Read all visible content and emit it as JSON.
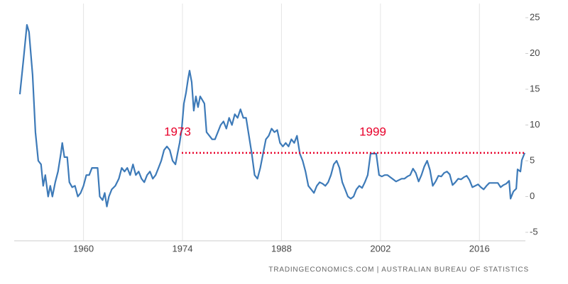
{
  "chart_data": {
    "type": "line",
    "source": "TRADINGECONOMICS.COM  |  AUSTRALIAN BUREAU OF STATISTICS",
    "annotations": [
      "1973",
      "1999"
    ],
    "annotation_color": "#e8002a",
    "reference_line": {
      "value": 6.1,
      "from": 1973.9,
      "to": 2022.4
    },
    "xlim": [
      1950.2,
      2022.5
    ],
    "xticks": [
      1960,
      1974,
      1988,
      2002,
      2016
    ],
    "ylim": [
      -5,
      25
    ],
    "yticks": [
      -5,
      0,
      5,
      10,
      15,
      20,
      25
    ],
    "grid": true,
    "x": [
      1951.0,
      1951.5,
      1952.0,
      1952.3,
      1952.8,
      1953.2,
      1953.6,
      1954.0,
      1954.3,
      1954.6,
      1955.0,
      1955.3,
      1955.6,
      1956.0,
      1956.4,
      1956.8,
      1957.0,
      1957.3,
      1957.7,
      1958.0,
      1958.4,
      1958.8,
      1959.2,
      1959.6,
      1960.0,
      1960.4,
      1960.8,
      1961.2,
      1961.6,
      1962.0,
      1962.3,
      1962.7,
      1963.0,
      1963.3,
      1963.6,
      1964.0,
      1964.5,
      1965.0,
      1965.4,
      1965.8,
      1966.2,
      1966.6,
      1967.0,
      1967.4,
      1967.8,
      1968.2,
      1968.6,
      1969.0,
      1969.4,
      1969.8,
      1970.2,
      1970.6,
      1971.0,
      1971.4,
      1971.8,
      1972.2,
      1972.6,
      1973.0,
      1973.3,
      1973.6,
      1973.9,
      1974.2,
      1974.5,
      1974.8,
      1975.0,
      1975.3,
      1975.6,
      1975.9,
      1976.2,
      1976.5,
      1976.8,
      1977.1,
      1977.4,
      1977.8,
      1978.2,
      1978.6,
      1979.0,
      1979.4,
      1979.8,
      1980.2,
      1980.6,
      1981.0,
      1981.4,
      1981.8,
      1982.2,
      1982.6,
      1983.0,
      1983.4,
      1983.8,
      1984.2,
      1984.6,
      1985.0,
      1985.4,
      1985.8,
      1986.2,
      1986.6,
      1987.0,
      1987.4,
      1987.8,
      1988.2,
      1988.6,
      1989.0,
      1989.4,
      1989.8,
      1990.2,
      1990.6,
      1991.0,
      1991.4,
      1991.8,
      1992.2,
      1992.6,
      1993.0,
      1993.4,
      1993.8,
      1994.2,
      1994.6,
      1995.0,
      1995.4,
      1995.8,
      1996.2,
      1996.6,
      1997.0,
      1997.4,
      1997.8,
      1998.2,
      1998.6,
      1999.0,
      1999.4,
      1999.8,
      2000.2,
      2000.6,
      2001.0,
      2001.4,
      2001.8,
      2002.2,
      2002.6,
      2003.0,
      2003.4,
      2003.8,
      2004.2,
      2004.6,
      2005.0,
      2005.4,
      2005.8,
      2006.2,
      2006.6,
      2007.0,
      2007.4,
      2007.8,
      2008.2,
      2008.6,
      2009.0,
      2009.4,
      2009.8,
      2010.2,
      2010.6,
      2011.0,
      2011.4,
      2011.8,
      2012.2,
      2012.6,
      2013.0,
      2013.4,
      2013.8,
      2014.2,
      2014.6,
      2015.0,
      2015.4,
      2015.8,
      2016.2,
      2016.6,
      2017.0,
      2017.4,
      2017.8,
      2018.2,
      2018.6,
      2019.0,
      2019.4,
      2019.8,
      2020.2,
      2020.4,
      2020.8,
      2021.2,
      2021.4,
      2021.8,
      2022.0,
      2022.4
    ],
    "series": [
      {
        "color": "#3d7ab8",
        "values": [
          14.3,
          19,
          24,
          23,
          17,
          9,
          5,
          4.5,
          1.5,
          3,
          0,
          1.5,
          0,
          2,
          3.5,
          6,
          7.5,
          5.5,
          5.5,
          2,
          1.3,
          1.5,
          0,
          0.5,
          1.5,
          3,
          3,
          4,
          4,
          4,
          0,
          -0.5,
          0.5,
          -1.4,
          0,
          1,
          1.5,
          2.5,
          4,
          3.5,
          4,
          3,
          4.5,
          3,
          3.5,
          2.5,
          2,
          3,
          3.5,
          2.5,
          3,
          4,
          5,
          6.5,
          7,
          6.5,
          5,
          4.5,
          6,
          7.5,
          9.5,
          13,
          14.5,
          16.5,
          17.6,
          16,
          12,
          14,
          12.5,
          14,
          13.5,
          13,
          9,
          8.5,
          8,
          8,
          9,
          10,
          10.5,
          9.5,
          11,
          10,
          11.5,
          11,
          12.2,
          11,
          11,
          8.5,
          6,
          3,
          2.5,
          4,
          6,
          8,
          8.5,
          9.5,
          9,
          9.3,
          7.5,
          7,
          7.5,
          7,
          8,
          7.5,
          8.5,
          6,
          5,
          3.5,
          1.5,
          1,
          0.5,
          1.5,
          2,
          1.8,
          1.5,
          2,
          3,
          4.5,
          5,
          4,
          2,
          1,
          0,
          -0.3,
          0,
          1,
          1.5,
          1.2,
          2,
          3,
          6,
          6,
          6,
          3,
          2.8,
          3,
          3,
          2.7,
          2.4,
          2.1,
          2.3,
          2.5,
          2.5,
          2.8,
          3,
          3.9,
          3.3,
          2.1,
          3,
          4.2,
          5,
          3.7,
          1.5,
          2.1,
          2.9,
          2.8,
          3.3,
          3.5,
          3.1,
          1.6,
          2,
          2.5,
          2.4,
          2.7,
          2.9,
          2.3,
          1.3,
          1.5,
          1.7,
          1.3,
          1,
          1.5,
          1.9,
          1.9,
          1.9,
          1.9,
          1.3,
          1.6,
          1.8,
          2.2,
          -0.3,
          0.7,
          1.1,
          3.8,
          3.5,
          5.1,
          6.1
        ]
      }
    ]
  }
}
